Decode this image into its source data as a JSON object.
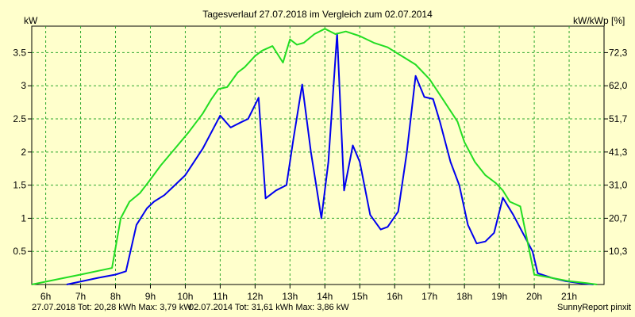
{
  "chart_data": {
    "type": "line",
    "title": "Tagesverlauf 27.07.2018 im Vergleich zum 02.07.2014",
    "ylabel_left": "kW",
    "ylabel_right": "kW/kWp [%]",
    "ylim": [
      0,
      3.9
    ],
    "xlim": [
      5.6,
      22.0
    ],
    "x_ticks": [
      "6h",
      "7h",
      "8h",
      "9h",
      "10h",
      "11h",
      "12h",
      "13h",
      "14h",
      "15h",
      "16h",
      "17h",
      "18h",
      "19h",
      "20h",
      "21h"
    ],
    "y_ticks_left": [
      "0.5",
      "1",
      "1.5",
      "2",
      "2.5",
      "3",
      "3.5"
    ],
    "y_ticks_right": [
      "10,3",
      "20,7",
      "31,0",
      "41,3",
      "51,7",
      "62,0",
      "72,3"
    ],
    "grid": true,
    "background_color": "#ffffcc",
    "grid_color": "#2ea82e",
    "series": [
      {
        "color": "#0000ee",
        "x": [
          6.6,
          7.5,
          8.0,
          8.3,
          8.6,
          8.9,
          9.1,
          9.4,
          9.7,
          10.0,
          10.5,
          11.0,
          11.3,
          11.6,
          11.8,
          12.1,
          12.3,
          12.6,
          12.9,
          13.1,
          13.35,
          13.6,
          13.9,
          14.1,
          14.35,
          14.55,
          14.8,
          15.0,
          15.3,
          15.6,
          15.8,
          16.1,
          16.35,
          16.6,
          16.85,
          17.1,
          17.3,
          17.6,
          17.85,
          18.1,
          18.35,
          18.6,
          18.85,
          19.1,
          19.4,
          19.7,
          19.95,
          20.1,
          20.5,
          20.9,
          21.3,
          21.7
        ],
        "y": [
          0.0,
          0.1,
          0.15,
          0.2,
          0.9,
          1.15,
          1.25,
          1.35,
          1.5,
          1.65,
          2.05,
          2.55,
          2.37,
          2.45,
          2.5,
          2.82,
          1.3,
          1.42,
          1.5,
          2.2,
          3.02,
          2.0,
          1.0,
          1.85,
          3.79,
          1.42,
          2.1,
          1.85,
          1.05,
          0.83,
          0.87,
          1.1,
          2.0,
          3.15,
          2.83,
          2.8,
          2.45,
          1.85,
          1.5,
          0.9,
          0.62,
          0.65,
          0.78,
          1.31,
          1.05,
          0.75,
          0.5,
          0.17,
          0.1,
          0.05,
          0.02,
          0.0
        ]
      },
      {
        "color": "#22dd22",
        "x": [
          5.6,
          7.0,
          7.9,
          8.15,
          8.4,
          8.7,
          8.95,
          9.3,
          9.7,
          10.1,
          10.5,
          10.75,
          10.95,
          11.2,
          11.5,
          11.7,
          12.0,
          12.2,
          12.5,
          12.8,
          13.0,
          13.2,
          13.4,
          13.7,
          14.0,
          14.3,
          14.6,
          15.0,
          15.4,
          15.8,
          16.2,
          16.6,
          17.0,
          17.4,
          17.8,
          18.0,
          18.3,
          18.6,
          18.9,
          19.1,
          19.3,
          19.6,
          20.0,
          20.5,
          21.0,
          21.5,
          21.8
        ],
        "y": [
          0.0,
          0.15,
          0.25,
          1.0,
          1.25,
          1.38,
          1.55,
          1.8,
          2.05,
          2.3,
          2.58,
          2.8,
          2.95,
          2.98,
          3.2,
          3.28,
          3.45,
          3.53,
          3.6,
          3.35,
          3.7,
          3.62,
          3.65,
          3.78,
          3.86,
          3.78,
          3.82,
          3.75,
          3.65,
          3.58,
          3.45,
          3.32,
          3.1,
          2.78,
          2.46,
          2.15,
          1.85,
          1.65,
          1.53,
          1.42,
          1.25,
          1.18,
          0.15,
          0.1,
          0.05,
          0.02,
          0.0
        ]
      }
    ]
  },
  "footer": {
    "series1_summary": "27.07.2018 Tot: 20,28 kWh Max: 3,79 kW",
    "series2_summary": "02.07.2014 Tot: 31,61 kWh Max: 3,86 kW",
    "series1_color": "#0000ee",
    "series2_color": "#22dd22",
    "credit": "SunnyReport pinxit"
  }
}
